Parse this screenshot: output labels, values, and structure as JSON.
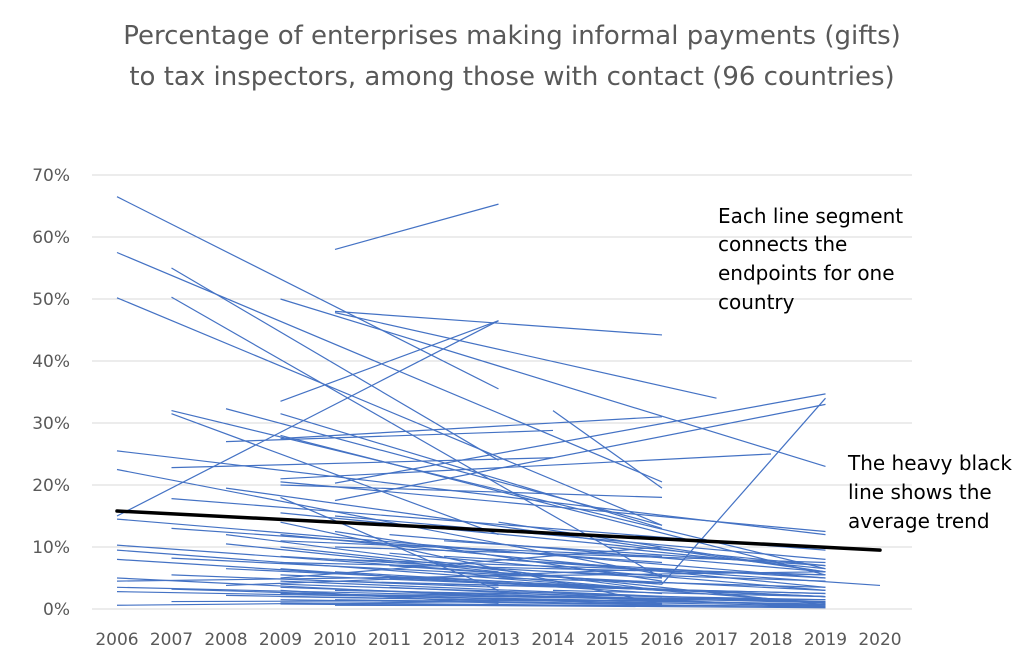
{
  "chart_data": {
    "type": "line",
    "title_lines": [
      "Percentage of enterprises making informal payments (gifts)",
      "to tax inspectors, among those with contact (96 countries)"
    ],
    "xlabel": "",
    "ylabel": "",
    "x_ticks": [
      "2006",
      "2007",
      "2008",
      "2009",
      "2010",
      "2011",
      "2012",
      "2013",
      "2014",
      "2015",
      "2016",
      "2017",
      "2018",
      "2019",
      "2020"
    ],
    "y_ticks": [
      "0%",
      "10%",
      "20%",
      "30%",
      "40%",
      "50%",
      "60%",
      "70%"
    ],
    "xlim": [
      2006,
      2020
    ],
    "ylim": [
      0,
      70
    ],
    "grid": "horizontal",
    "legend": "none",
    "colors": {
      "country_line": "#4472c4",
      "average_line": "#000000",
      "grid": "#d9d9d9",
      "tick_text": "#595959"
    },
    "annotations": [
      {
        "lines": [
          "Each line segment",
          "connects the",
          "endpoints for one",
          "country"
        ]
      },
      {
        "lines": [
          "The heavy black",
          "line shows the",
          "average trend"
        ]
      }
    ],
    "average": {
      "x": [
        2006,
        2020
      ],
      "y": [
        15.8,
        9.5
      ]
    },
    "segments": [
      [
        2006,
        66.5,
        2013,
        35.5
      ],
      [
        2006,
        57.5,
        2016,
        20.5
      ],
      [
        2006,
        50.2,
        2016,
        13.5
      ],
      [
        2006,
        25.5,
        2019,
        12.0
      ],
      [
        2006,
        22.5,
        2016,
        5.5
      ],
      [
        2006,
        15.0,
        2013,
        46.5
      ],
      [
        2006,
        14.5,
        2019,
        5.0
      ],
      [
        2006,
        10.3,
        2016,
        4.0
      ],
      [
        2006,
        9.5,
        2019,
        1.0
      ],
      [
        2006,
        8.0,
        2016,
        2.5
      ],
      [
        2006,
        5.0,
        2013,
        2.0
      ],
      [
        2006,
        4.5,
        2019,
        6.0
      ],
      [
        2006,
        3.5,
        2016,
        1.5
      ],
      [
        2006,
        2.8,
        2019,
        0.8
      ],
      [
        2006,
        0.6,
        2013,
        1.2
      ],
      [
        2007,
        55.0,
        2013,
        24.0
      ],
      [
        2007,
        50.3,
        2016,
        5.0
      ],
      [
        2007,
        32.0,
        2019,
        6.5
      ],
      [
        2007,
        31.5,
        2013,
        12.0
      ],
      [
        2007,
        22.8,
        2014,
        24.4
      ],
      [
        2007,
        17.8,
        2019,
        9.5
      ],
      [
        2007,
        13.0,
        2016,
        7.5
      ],
      [
        2007,
        8.2,
        2019,
        3.0
      ],
      [
        2007,
        5.5,
        2013,
        3.5
      ],
      [
        2007,
        3.2,
        2016,
        0.8
      ],
      [
        2007,
        1.2,
        2019,
        1.5
      ],
      [
        2008,
        32.3,
        2016,
        13.5
      ],
      [
        2008,
        27.0,
        2014,
        28.8
      ],
      [
        2008,
        19.5,
        2019,
        6.0
      ],
      [
        2008,
        12.0,
        2016,
        3.0
      ],
      [
        2008,
        10.5,
        2013,
        6.0
      ],
      [
        2008,
        6.5,
        2019,
        2.0
      ],
      [
        2008,
        3.8,
        2016,
        6.5
      ],
      [
        2008,
        2.2,
        2019,
        0.5
      ],
      [
        2009,
        50.0,
        2019,
        23.0
      ],
      [
        2009,
        33.5,
        2013,
        46.5
      ],
      [
        2009,
        31.5,
        2016,
        13.0
      ],
      [
        2009,
        28.0,
        2019,
        5.5
      ],
      [
        2009,
        27.5,
        2016,
        31.0
      ],
      [
        2009,
        21.0,
        2018,
        25.0
      ],
      [
        2009,
        20.5,
        2019,
        12.5
      ],
      [
        2009,
        20.0,
        2016,
        18.0
      ],
      [
        2009,
        18.0,
        2013,
        3.0
      ],
      [
        2009,
        15.5,
        2019,
        7.0
      ],
      [
        2009,
        14.0,
        2016,
        0.8
      ],
      [
        2009,
        12.0,
        2019,
        3.5
      ],
      [
        2009,
        11.0,
        2016,
        8.5
      ],
      [
        2009,
        10.0,
        2019,
        0.7
      ],
      [
        2009,
        8.5,
        2016,
        5.0
      ],
      [
        2009,
        7.5,
        2019,
        5.5
      ],
      [
        2009,
        6.5,
        2013,
        4.0
      ],
      [
        2009,
        5.5,
        2019,
        2.0
      ],
      [
        2009,
        5.0,
        2016,
        10.0
      ],
      [
        2009,
        4.5,
        2019,
        1.0
      ],
      [
        2009,
        4.0,
        2016,
        2.0
      ],
      [
        2009,
        3.5,
        2019,
        0.5
      ],
      [
        2009,
        3.0,
        2013,
        0.9
      ],
      [
        2009,
        2.5,
        2019,
        1.2
      ],
      [
        2009,
        2.0,
        2016,
        1.0
      ],
      [
        2009,
        1.5,
        2019,
        0.3
      ],
      [
        2009,
        1.0,
        2016,
        0.5
      ],
      [
        2009,
        0.8,
        2019,
        0.2
      ],
      [
        2010,
        58.0,
        2013,
        65.3
      ],
      [
        2010,
        48.0,
        2016,
        44.2
      ],
      [
        2010,
        47.8,
        2017,
        34.0
      ],
      [
        2010,
        20.3,
        2019,
        34.7
      ],
      [
        2010,
        17.5,
        2019,
        33.0
      ],
      [
        2010,
        15.0,
        2019,
        8.0
      ],
      [
        2010,
        12.5,
        2016,
        4.5
      ],
      [
        2010,
        10.0,
        2019,
        7.5
      ],
      [
        2010,
        8.0,
        2019,
        5.5
      ],
      [
        2010,
        6.0,
        2016,
        3.0
      ],
      [
        2010,
        4.5,
        2019,
        2.5
      ],
      [
        2010,
        3.0,
        2019,
        1.5
      ],
      [
        2010,
        1.5,
        2016,
        0.8
      ],
      [
        2010,
        0.6,
        2019,
        0.5
      ],
      [
        2011,
        12.0,
        2019,
        6.0
      ],
      [
        2011,
        9.0,
        2019,
        3.0
      ],
      [
        2011,
        7.0,
        2016,
        4.0
      ],
      [
        2011,
        5.0,
        2019,
        2.0
      ],
      [
        2011,
        3.5,
        2016,
        1.5
      ],
      [
        2011,
        2.0,
        2019,
        0.7
      ],
      [
        2012,
        11.0,
        2019,
        7.0
      ],
      [
        2012,
        8.5,
        2019,
        5.0
      ],
      [
        2012,
        6.0,
        2016,
        3.0
      ],
      [
        2012,
        4.0,
        2019,
        2.5
      ],
      [
        2012,
        2.5,
        2019,
        1.0
      ],
      [
        2013,
        14.0,
        2019,
        6.0
      ],
      [
        2013,
        8.0,
        2020,
        3.8
      ],
      [
        2013,
        5.0,
        2019,
        3.5
      ],
      [
        2013,
        2.0,
        2019,
        1.5
      ],
      [
        2014,
        32.0,
        2016,
        19.5
      ],
      [
        2014,
        6.0,
        2019,
        4.5
      ],
      [
        2014,
        3.0,
        2019,
        2.0
      ],
      [
        2015,
        10.0,
        2019,
        6.5
      ],
      [
        2016,
        4.0,
        2019,
        34.0
      ]
    ]
  }
}
